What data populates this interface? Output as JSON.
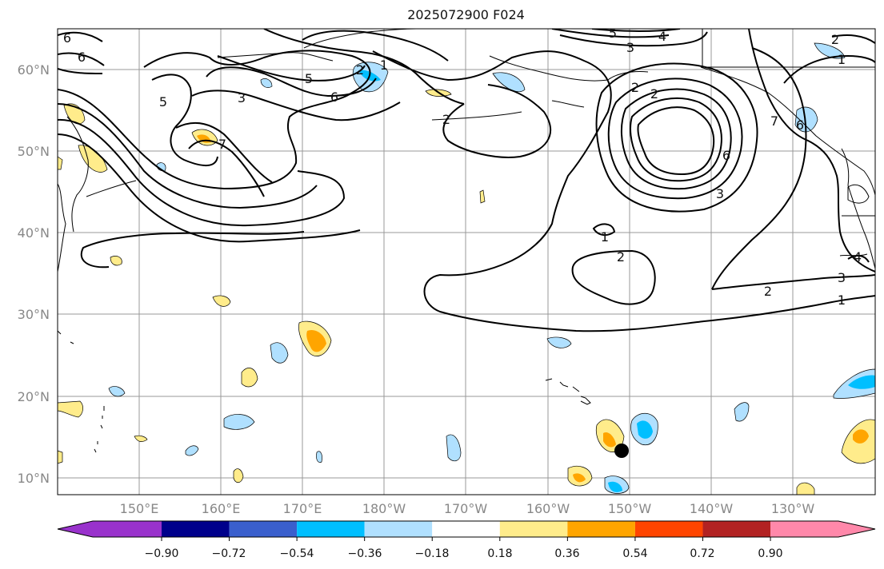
{
  "title": "2025072900 F024",
  "map": {
    "projection": "cylindrical",
    "lon_range": [
      "140°E",
      "120°W"
    ],
    "lat_range": [
      "8°N",
      "65°N"
    ],
    "gridlines": true,
    "lat_labels": [
      "60°N",
      "50°N",
      "40°N",
      "30°N",
      "20°N",
      "10°N"
    ],
    "lon_labels": [
      "150°E",
      "160°E",
      "170°E",
      "180°W",
      "170°W",
      "160°W",
      "150°W",
      "140°W",
      "130°W"
    ],
    "contour_labels": [
      "6",
      "6",
      "5",
      "5",
      "3",
      "2",
      "1",
      "6",
      "2",
      "7",
      "5",
      "4",
      "3",
      "2",
      "1",
      "2",
      "6",
      "3",
      "1",
      "2",
      "2",
      "1",
      "3",
      "4",
      "6",
      "7",
      "2"
    ],
    "marker": {
      "name": "storm-center",
      "lon": "151°W",
      "lat": "13.5°N",
      "color": "#000000"
    }
  },
  "colorbar": {
    "ticks": [
      "−0.90",
      "−0.72",
      "−0.54",
      "−0.36",
      "−0.18",
      "0.18",
      "0.36",
      "0.54",
      "0.72",
      "0.90"
    ],
    "colors": [
      "#9932cc",
      "#00008b",
      "#3a5fcd",
      "#00bfff",
      "#b0e0ff",
      "#ffffff",
      "#ffec8b",
      "#ffa500",
      "#ff4500",
      "#b22222",
      "#ff88aa"
    ],
    "extend": "both"
  }
}
